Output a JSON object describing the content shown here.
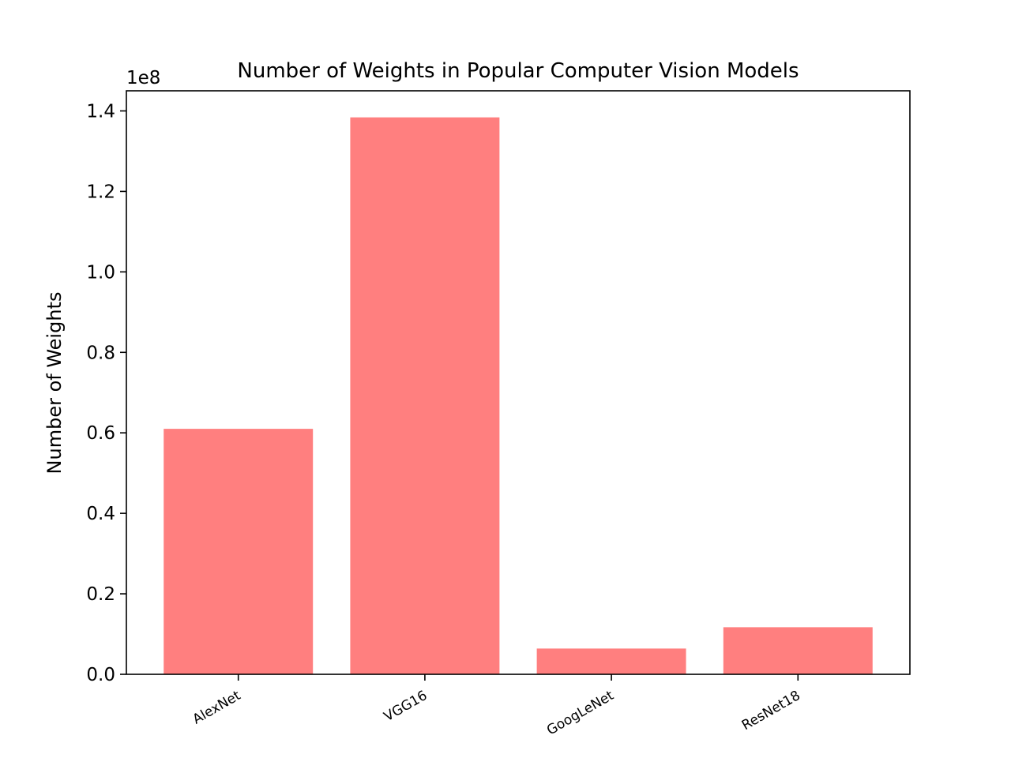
{
  "chart_data": {
    "type": "bar",
    "title": "Number of Weights in Popular Computer Vision Models",
    "xlabel": "",
    "ylabel": "Number of Weights",
    "categories": [
      "AlexNet",
      "VGG16",
      "GoogLeNet",
      "ResNet18"
    ],
    "values": [
      61000000,
      138400000,
      6400000,
      11700000
    ],
    "ylim": [
      0,
      145000000
    ],
    "yticks": [
      0,
      20000000,
      40000000,
      60000000,
      80000000,
      100000000,
      120000000,
      140000000
    ],
    "ytick_labels": [
      "0.0",
      "0.2",
      "0.4",
      "0.6",
      "0.8",
      "1.0",
      "1.2",
      "1.4"
    ],
    "y_offset_label": "1e8",
    "xtick_rotation_deg": 30,
    "grid": false,
    "legend": "none",
    "bar_color": "#ff7f7f"
  }
}
